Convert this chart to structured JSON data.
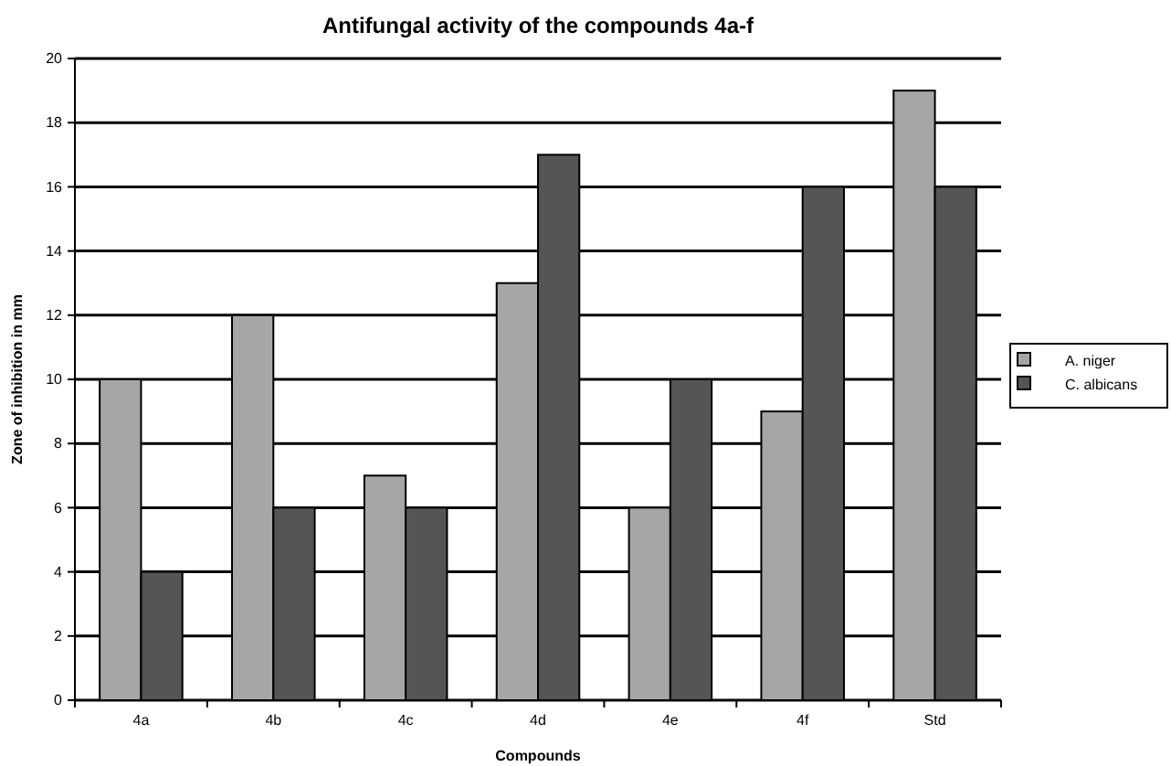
{
  "chart_data": {
    "type": "bar",
    "title": "Antifungal activity of the compounds 4a-f",
    "xlabel": "Compounds",
    "ylabel": "Zone of inhibition in mm",
    "categories": [
      "4a",
      "4b",
      "4c",
      "4d",
      "4e",
      "4f",
      "Std"
    ],
    "series": [
      {
        "name": "A. niger",
        "color": "#a6a6a6",
        "values": [
          10,
          12,
          7,
          13,
          6,
          9,
          19
        ]
      },
      {
        "name": "C. albicans",
        "color": "#555555",
        "values": [
          4,
          6,
          6,
          17,
          10,
          16,
          16
        ]
      }
    ],
    "ylim": [
      0,
      20
    ],
    "yticks": [
      0,
      2,
      4,
      6,
      8,
      10,
      12,
      14,
      16,
      18,
      20
    ],
    "grid": "y",
    "legend": "right"
  }
}
